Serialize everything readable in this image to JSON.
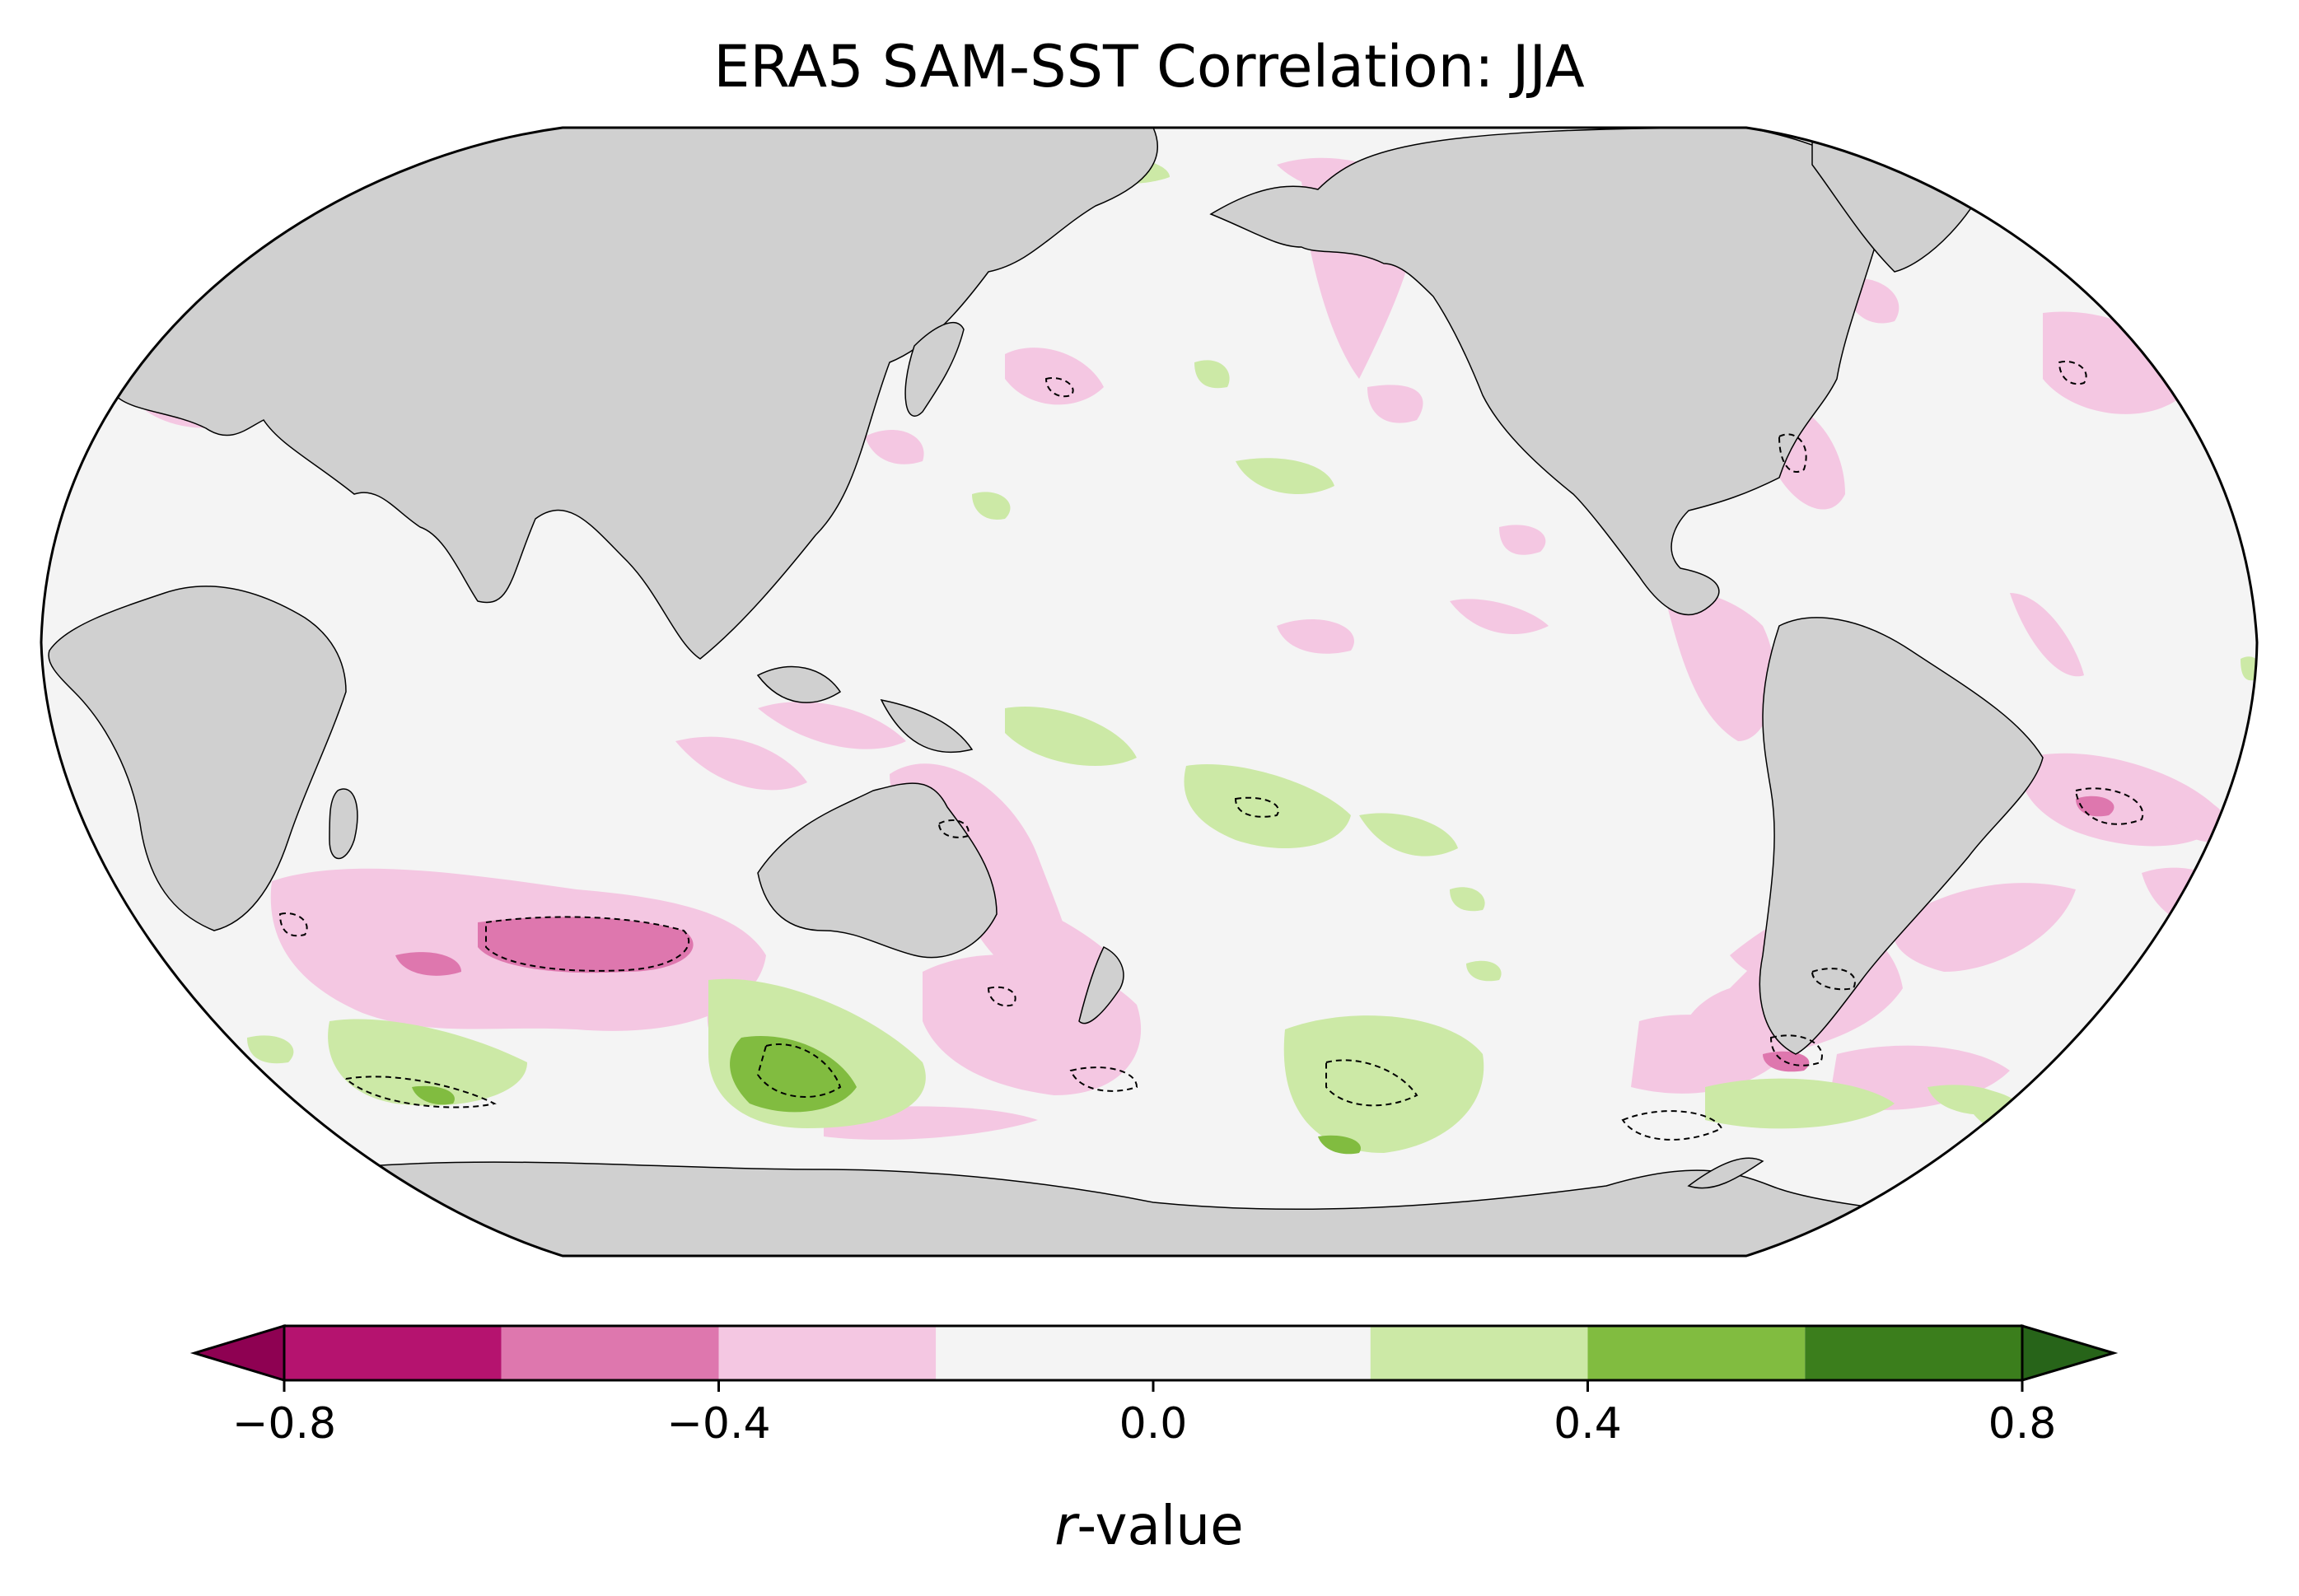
{
  "title": "ERA5 SAM-SST Correlation: JJA",
  "colorbar": {
    "label_italic": "r",
    "label_rest": "-value",
    "ticks": [
      "−0.8",
      "−0.4",
      "0.0",
      "0.4",
      "0.8"
    ],
    "tick_values": [
      -0.8,
      -0.4,
      0.0,
      0.4,
      0.8
    ],
    "levels": [
      -0.8,
      -0.6,
      -0.4,
      -0.2,
      0.2,
      0.4,
      0.6,
      0.8
    ],
    "colors": [
      "#b5136f",
      "#de77ae",
      "#f4c7e2",
      "#f4f4f4",
      "#cce9a6",
      "#81bc40",
      "#3b7e1c"
    ],
    "under_color": "#8e0152",
    "over_color": "#276419"
  },
  "map": {
    "projection": "Robinson (central longitude 180°)",
    "ocean_color": "#f4f4f4",
    "land_color": "#d0d0d0",
    "coastline_color": "#000000",
    "significance_contour": "dashed"
  },
  "chart_data": {
    "type": "heatmap",
    "title": "ERA5 SAM-SST Correlation: JJA",
    "colorbar_label": "r-value",
    "colorbar_ticks": [
      -0.8,
      -0.4,
      0.0,
      0.4,
      0.8
    ],
    "vmin": -0.8,
    "vmax": 0.8,
    "extend": "both"
  }
}
